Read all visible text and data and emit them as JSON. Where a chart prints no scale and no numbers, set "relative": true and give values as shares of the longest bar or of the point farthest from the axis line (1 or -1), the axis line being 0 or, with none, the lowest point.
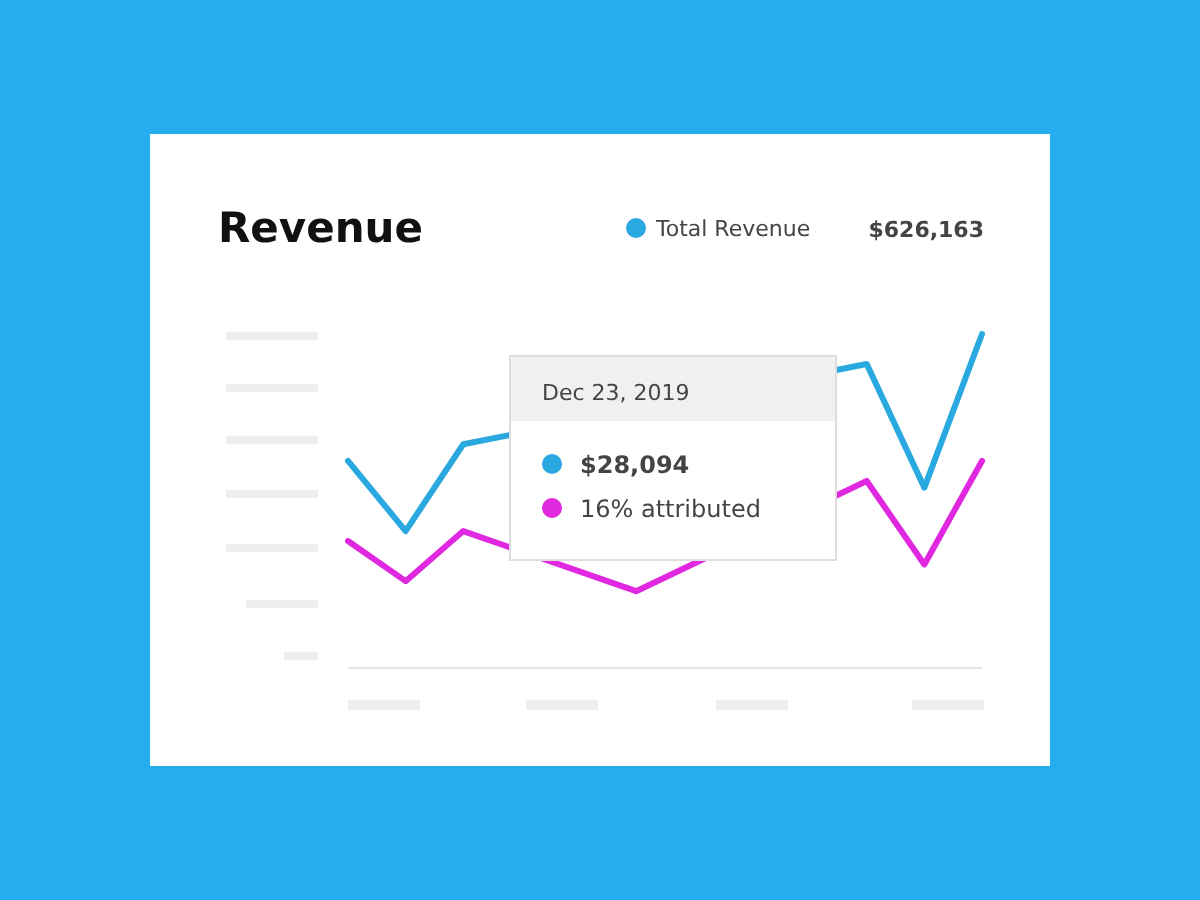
{
  "chart_data": {
    "type": "line",
    "title": "Revenue",
    "relative": true,
    "legend": "top right",
    "categories": [
      null,
      null,
      null,
      null,
      null,
      null,
      null,
      null,
      null,
      null,
      null,
      null
    ],
    "series": [
      {
        "name": "Total Revenue",
        "color": "#2aa8e0",
        "values": [
          0.62,
          0.41,
          0.67,
          null,
          null,
          null,
          null,
          null,
          null,
          0.91,
          0.54,
          1
        ]
      },
      {
        "color": "#e028e0",
        "values": [
          0.38,
          0.26,
          0.41,
          null,
          null,
          0.23,
          null,
          null,
          null,
          0.56,
          0.31,
          0.62
        ]
      }
    ],
    "annotations": [
      "$626,163",
      "Dec 23, 2019",
      "$28,094",
      "16% attributed"
    ]
  }
}
